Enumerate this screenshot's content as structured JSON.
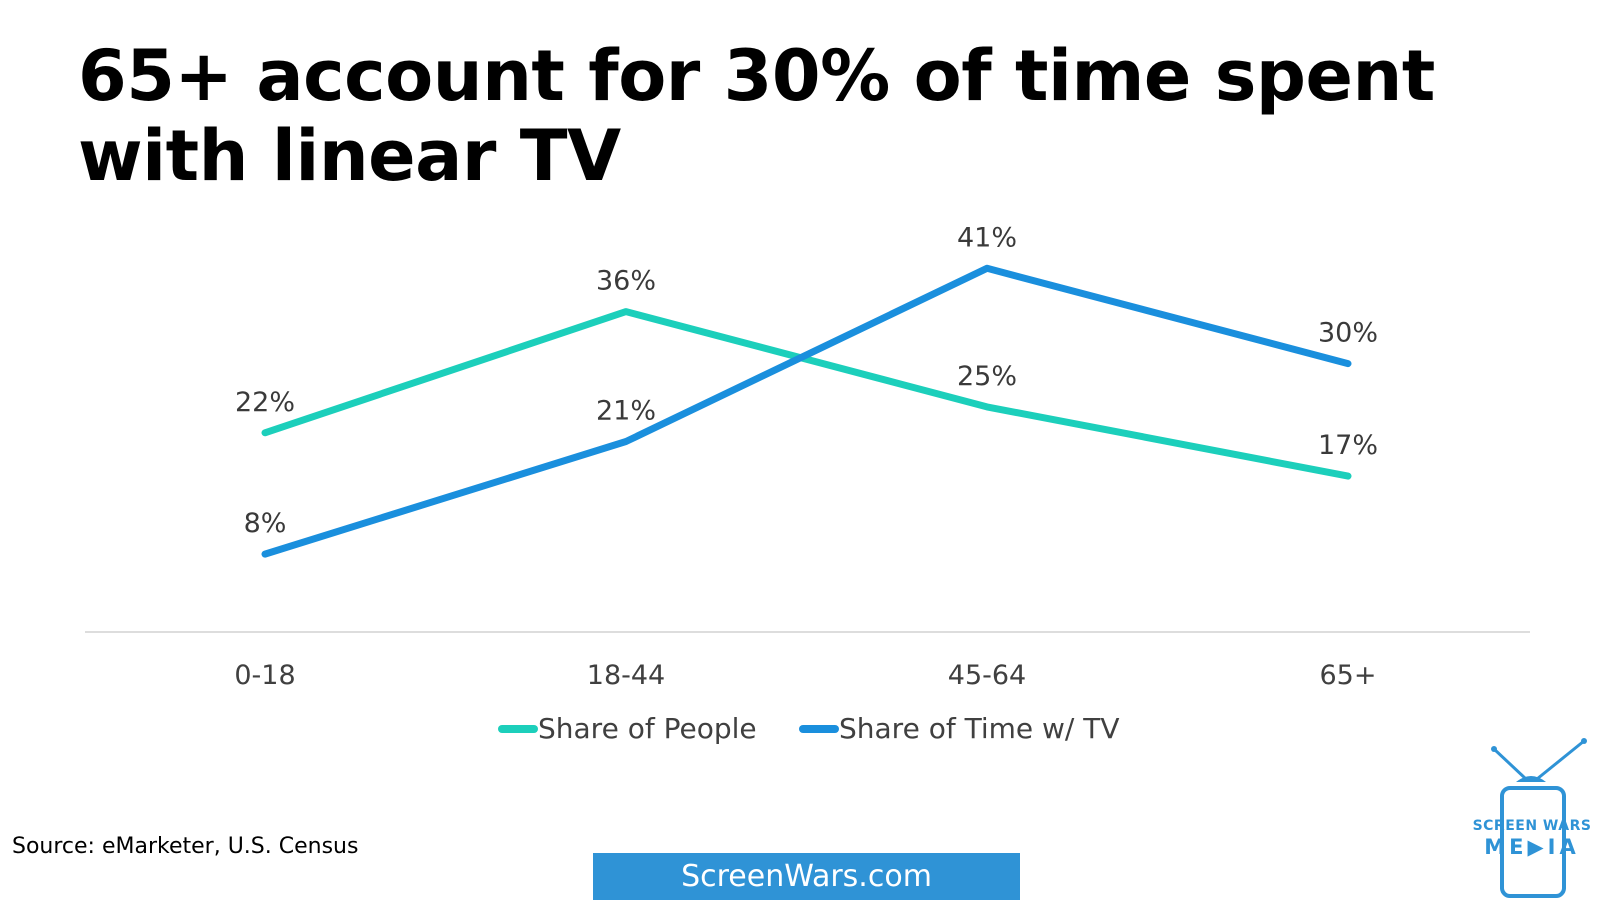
{
  "title": "65+ account for 30% of time spent with linear TV",
  "source": "Source: eMarketer, U.S. Census",
  "site": "ScreenWars.com",
  "logo": {
    "line1": "SCREEN WARS",
    "line2": "ME▶IA",
    "icon": "tv-icon"
  },
  "colors": {
    "people": "#1ccfbb",
    "time": "#1a8fdd",
    "axis": "#dddddd",
    "brand": "#2f93d6"
  },
  "chart_data": {
    "type": "line",
    "categories": [
      "0-18",
      "18-44",
      "45-64",
      "65+"
    ],
    "series": [
      {
        "name": "Share of People",
        "values": [
          22,
          36,
          25,
          17
        ],
        "labels": [
          "22%",
          "36%",
          "25%",
          "17%"
        ],
        "color": "#1ccfbb"
      },
      {
        "name": "Share of Time w/ TV",
        "values": [
          8,
          21,
          41,
          30
        ],
        "labels": [
          "8%",
          "21%",
          "41%",
          "30%"
        ],
        "color": "#1a8fdd"
      }
    ],
    "unit": "%",
    "ylim": [
      -1,
      46
    ],
    "grid": false,
    "legend": "bottom"
  }
}
